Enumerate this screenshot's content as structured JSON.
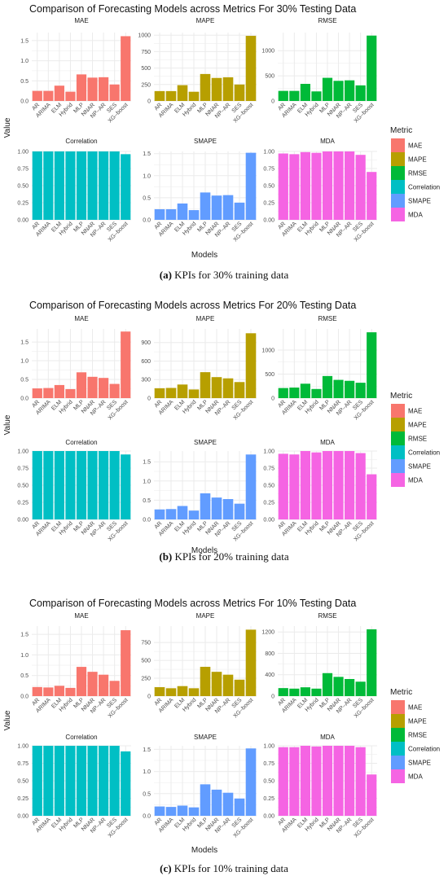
{
  "chart_data": [
    {
      "type": "bar",
      "title": "Comparison of Forecasting Models across Metrics For 30% Testing Data",
      "caption_label": "(a)",
      "caption_text": "KPIs for 30% training data",
      "xlabel": "Models",
      "ylabel": "Value",
      "legend_title": "Metric",
      "legend_position": "right",
      "categories": [
        "AR",
        "ARIMA",
        "ELM",
        "Hybrid",
        "MLP",
        "NNAR",
        "NP–AR",
        "SES",
        "XG–boost"
      ],
      "panels": [
        {
          "name": "MAE",
          "ylim": [
            0,
            1.7
          ],
          "ticks": [
            0.0,
            0.5,
            1.0,
            1.5
          ],
          "tick_labels": [
            "0.0",
            "0.5",
            "1.0",
            "1.5"
          ],
          "values": [
            0.25,
            0.25,
            0.38,
            0.23,
            0.66,
            0.58,
            0.59,
            0.41,
            1.61
          ]
        },
        {
          "name": "MAPE",
          "ylim": [
            0,
            1040
          ],
          "ticks": [
            0,
            250,
            500,
            750,
            1000
          ],
          "tick_labels": [
            "0",
            "250",
            "500",
            "750",
            "1000"
          ],
          "values": [
            150,
            150,
            240,
            140,
            410,
            350,
            360,
            250,
            990
          ]
        },
        {
          "name": "RMSE",
          "ylim": [
            0,
            1360
          ],
          "ticks": [
            0,
            500,
            1000
          ],
          "tick_labels": [
            "0",
            "500",
            "1000"
          ],
          "values": [
            200,
            200,
            340,
            190,
            460,
            400,
            410,
            310,
            1300
          ]
        },
        {
          "name": "Correlation",
          "ylim": [
            0,
            1.0
          ],
          "ticks": [
            0.0,
            0.25,
            0.5,
            0.75,
            1.0
          ],
          "tick_labels": [
            "0.00",
            "0.25",
            "0.50",
            "0.75",
            "1.00"
          ],
          "values": [
            1.0,
            1.0,
            1.0,
            1.0,
            1.0,
            1.0,
            1.0,
            1.0,
            0.96
          ]
        },
        {
          "name": "SMAPE",
          "ylim": [
            0,
            1.55
          ],
          "ticks": [
            0.0,
            0.5,
            1.0,
            1.5
          ],
          "tick_labels": [
            "0.0",
            "0.5",
            "1.0",
            "1.5"
          ],
          "values": [
            0.24,
            0.24,
            0.37,
            0.22,
            0.62,
            0.55,
            0.56,
            0.39,
            1.52
          ]
        },
        {
          "name": "MDA",
          "ylim": [
            0,
            1.0
          ],
          "ticks": [
            0.0,
            0.25,
            0.5,
            0.75,
            1.0
          ],
          "tick_labels": [
            "0.00",
            "0.25",
            "0.50",
            "0.75",
            "1.00"
          ],
          "values": [
            0.97,
            0.96,
            0.99,
            0.98,
            1.0,
            1.0,
            1.0,
            0.95,
            0.7
          ]
        }
      ]
    },
    {
      "type": "bar",
      "title": "Comparison of Forecasting Models across Metrics For 20% Testing Data",
      "caption_label": "(b)",
      "caption_text": "KPIs for 20% training data",
      "xlabel": "Models",
      "ylabel": "Value",
      "legend_title": "Metric",
      "legend_position": "right",
      "categories": [
        "AR",
        "ARIMA",
        "ELM",
        "Hybrid",
        "MLP",
        "NNAR",
        "NP–AR",
        "SES",
        "XG–boost"
      ],
      "panels": [
        {
          "name": "MAE",
          "ylim": [
            0,
            1.85
          ],
          "ticks": [
            0.0,
            0.5,
            1.0,
            1.5
          ],
          "tick_labels": [
            "0.0",
            "0.5",
            "1.0",
            "1.5"
          ],
          "values": [
            0.26,
            0.27,
            0.35,
            0.24,
            0.69,
            0.57,
            0.54,
            0.38,
            1.78
          ]
        },
        {
          "name": "MAPE",
          "ylim": [
            0,
            1120
          ],
          "ticks": [
            0,
            300,
            600,
            900
          ],
          "tick_labels": [
            "0",
            "300",
            "600",
            "900"
          ],
          "values": [
            160,
            165,
            220,
            140,
            420,
            340,
            320,
            260,
            1050
          ]
        },
        {
          "name": "RMSE",
          "ylim": [
            0,
            1440
          ],
          "ticks": [
            0,
            500,
            1000
          ],
          "tick_labels": [
            "0",
            "500",
            "1000"
          ],
          "values": [
            210,
            220,
            300,
            190,
            460,
            380,
            360,
            320,
            1370
          ]
        },
        {
          "name": "Correlation",
          "ylim": [
            0,
            1.0
          ],
          "ticks": [
            0.0,
            0.25,
            0.5,
            0.75,
            1.0
          ],
          "tick_labels": [
            "0.00",
            "0.25",
            "0.50",
            "0.75",
            "1.00"
          ],
          "values": [
            1.0,
            1.0,
            1.0,
            1.0,
            1.0,
            1.0,
            1.0,
            1.0,
            0.95
          ]
        },
        {
          "name": "SMAPE",
          "ylim": [
            0,
            1.78
          ],
          "ticks": [
            0.0,
            0.5,
            1.0,
            1.5
          ],
          "tick_labels": [
            "0.0",
            "0.5",
            "1.0",
            "1.5"
          ],
          "values": [
            0.26,
            0.27,
            0.35,
            0.23,
            0.68,
            0.57,
            0.53,
            0.41,
            1.69
          ]
        },
        {
          "name": "MDA",
          "ylim": [
            0,
            1.0
          ],
          "ticks": [
            0.0,
            0.25,
            0.5,
            0.75,
            1.0
          ],
          "tick_labels": [
            "0.00",
            "0.25",
            "0.50",
            "0.75",
            "1.00"
          ],
          "values": [
            0.96,
            0.95,
            1.0,
            0.98,
            1.0,
            1.0,
            1.0,
            0.97,
            0.66
          ]
        }
      ]
    },
    {
      "type": "bar",
      "title": "Comparison of Forecasting Models across Metrics For 10% Testing Data",
      "caption_label": "(c)",
      "caption_text": "KPIs for 10% training data",
      "xlabel": "Models",
      "ylabel": "Value",
      "legend_title": "Metric",
      "legend_position": "right",
      "categories": [
        "AR",
        "ARIMA",
        "ELM",
        "Hybrid",
        "MLP",
        "NNAR",
        "NP–AR",
        "SES",
        "XG–boost"
      ],
      "panels": [
        {
          "name": "MAE",
          "ylim": [
            0,
            1.7
          ],
          "ticks": [
            0.0,
            0.5,
            1.0,
            1.5
          ],
          "tick_labels": [
            "0.0",
            "0.5",
            "1.0",
            "1.5"
          ],
          "values": [
            0.22,
            0.21,
            0.25,
            0.2,
            0.71,
            0.59,
            0.52,
            0.37,
            1.6
          ]
        },
        {
          "name": "MAPE",
          "ylim": [
            0,
            980
          ],
          "ticks": [
            0,
            250,
            500,
            750
          ],
          "tick_labels": [
            "0",
            "250",
            "500",
            "750"
          ],
          "values": [
            125,
            110,
            140,
            110,
            410,
            340,
            300,
            230,
            930
          ]
        },
        {
          "name": "RMSE",
          "ylim": [
            0,
            1310
          ],
          "ticks": [
            0,
            400,
            800,
            1200
          ],
          "tick_labels": [
            "0",
            "400",
            "800",
            "1200"
          ],
          "values": [
            150,
            140,
            165,
            140,
            430,
            360,
            320,
            270,
            1250
          ]
        },
        {
          "name": "Correlation",
          "ylim": [
            0,
            1.0
          ],
          "ticks": [
            0.0,
            0.25,
            0.5,
            0.75,
            1.0
          ],
          "tick_labels": [
            "0.00",
            "0.25",
            "0.50",
            "0.75",
            "1.00"
          ],
          "values": [
            1.0,
            1.0,
            1.0,
            1.0,
            1.0,
            1.0,
            1.0,
            1.0,
            0.92
          ]
        },
        {
          "name": "SMAPE",
          "ylim": [
            0,
            1.58
          ],
          "ticks": [
            0.0,
            0.5,
            1.0,
            1.5
          ],
          "tick_labels": [
            "0.0",
            "0.5",
            "1.0",
            "1.5"
          ],
          "values": [
            0.21,
            0.2,
            0.23,
            0.19,
            0.71,
            0.59,
            0.52,
            0.39,
            1.52
          ]
        },
        {
          "name": "MDA",
          "ylim": [
            0,
            1.0
          ],
          "ticks": [
            0.0,
            0.25,
            0.5,
            0.75,
            1.0
          ],
          "tick_labels": [
            "0.00",
            "0.25",
            "0.50",
            "0.75",
            "1.00"
          ],
          "values": [
            0.98,
            0.98,
            1.0,
            0.99,
            1.0,
            1.0,
            1.0,
            0.98,
            0.59
          ]
        }
      ]
    }
  ],
  "legend": {
    "title": "Metric",
    "items": [
      {
        "label": "MAE",
        "color": "#F8766D"
      },
      {
        "label": "MAPE",
        "color": "#B79F00"
      },
      {
        "label": "RMSE",
        "color": "#00BA38"
      },
      {
        "label": "Correlation",
        "color": "#00BFC4"
      },
      {
        "label": "SMAPE",
        "color": "#619CFF"
      },
      {
        "label": "MDA",
        "color": "#F564E3"
      }
    ]
  },
  "style": {
    "panel_background": "#ffffff",
    "grid_color": "#ebebeb",
    "text_color": "#4d4d4d"
  }
}
